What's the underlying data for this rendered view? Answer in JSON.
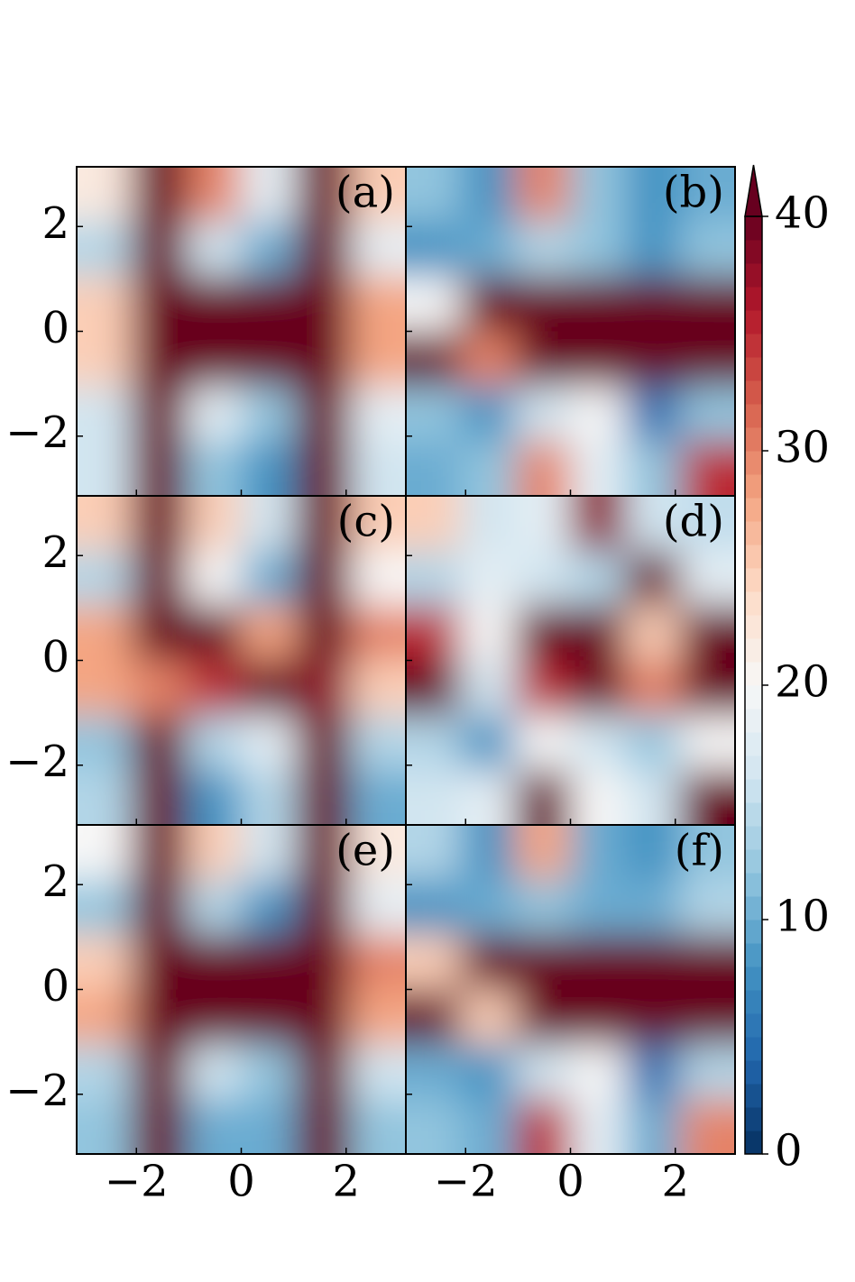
{
  "chart_data": {
    "type": "contour",
    "xlim": [
      -3.14,
      3.14
    ],
    "ylim": [
      -3.14,
      3.14
    ],
    "xticks": [
      {
        "value": -2,
        "label": "−2"
      },
      0,
      2
    ],
    "yticks": [
      {
        "value": -2,
        "label": "−2"
      },
      0,
      2
    ],
    "colormap": [
      "#053061",
      "#2166ac",
      "#4393c3",
      "#92c5de",
      "#d1e5f0",
      "#f7f7f7",
      "#fddbc7",
      "#f4a582",
      "#d6604d",
      "#b2182b",
      "#67001f"
    ],
    "panels": [
      {
        "label": "(a)",
        "z": [
          [
            22,
            45,
            30,
            18,
            45,
            25
          ],
          [
            14,
            45,
            16,
            10,
            45,
            18
          ],
          [
            25,
            45,
            40,
            40,
            45,
            28
          ],
          [
            25,
            45,
            45,
            45,
            45,
            28
          ],
          [
            16,
            45,
            18,
            12,
            45,
            18
          ],
          [
            16,
            45,
            12,
            8,
            45,
            16
          ]
        ]
      },
      {
        "label": "(b)",
        "z": [
          [
            12,
            8,
            30,
            12,
            8,
            10
          ],
          [
            8,
            10,
            14,
            12,
            8,
            12
          ],
          [
            20,
            45,
            45,
            45,
            40,
            45
          ],
          [
            45,
            30,
            45,
            45,
            45,
            40
          ],
          [
            12,
            8,
            16,
            20,
            5,
            12
          ],
          [
            10,
            12,
            30,
            18,
            12,
            35
          ]
        ]
      },
      {
        "label": "(c)",
        "z": [
          [
            25,
            45,
            25,
            16,
            45,
            25
          ],
          [
            14,
            45,
            20,
            10,
            45,
            20
          ],
          [
            28,
            40,
            45,
            28,
            40,
            30
          ],
          [
            28,
            30,
            35,
            45,
            38,
            25
          ],
          [
            12,
            40,
            14,
            18,
            45,
            14
          ],
          [
            14,
            40,
            8,
            14,
            45,
            10
          ]
        ]
      },
      {
        "label": "(d)",
        "z": [
          [
            25,
            16,
            18,
            38,
            16,
            15
          ],
          [
            14,
            18,
            16,
            14,
            45,
            18
          ],
          [
            35,
            20,
            40,
            45,
            25,
            45
          ],
          [
            45,
            16,
            35,
            45,
            30,
            40
          ],
          [
            14,
            8,
            20,
            16,
            12,
            20
          ],
          [
            16,
            18,
            40,
            20,
            16,
            40
          ]
        ]
      },
      {
        "label": "(e)",
        "z": [
          [
            20,
            45,
            25,
            16,
            45,
            22
          ],
          [
            12,
            45,
            14,
            8,
            45,
            18
          ],
          [
            25,
            45,
            45,
            45,
            45,
            30
          ],
          [
            28,
            45,
            45,
            45,
            45,
            28
          ],
          [
            14,
            45,
            16,
            12,
            45,
            16
          ],
          [
            12,
            45,
            10,
            10,
            45,
            12
          ]
        ]
      },
      {
        "label": "(f)",
        "z": [
          [
            14,
            8,
            28,
            10,
            8,
            12
          ],
          [
            8,
            10,
            12,
            10,
            10,
            14
          ],
          [
            25,
            45,
            45,
            45,
            40,
            45
          ],
          [
            45,
            25,
            45,
            45,
            45,
            40
          ],
          [
            10,
            8,
            16,
            20,
            5,
            14
          ],
          [
            12,
            10,
            35,
            18,
            10,
            30
          ]
        ]
      }
    ],
    "colorbar": {
      "lim": [
        0,
        40
      ],
      "ticks": [
        0,
        10,
        20,
        30,
        40
      ],
      "extend": "max"
    }
  }
}
